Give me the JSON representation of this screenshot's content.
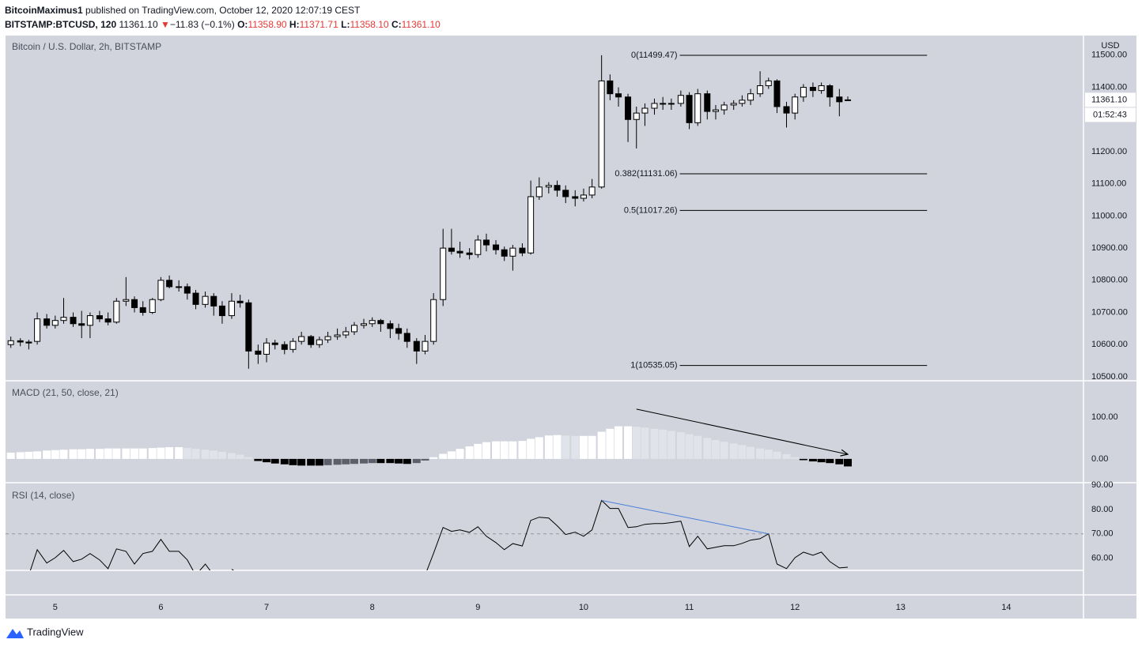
{
  "header": {
    "author": "BitcoinMaximus1",
    "published": "published on TradingView.com, October 12, 2020 12:07:19 CEST",
    "symbol": "BITSTAMP:BTCUSD, 120",
    "last": "11361.10",
    "arrow": "▼",
    "change": "−11.83 (−0.1%)",
    "ohlc": [
      {
        "label": "O:",
        "value": "11358.90"
      },
      {
        "label": "H:",
        "value": "11371.71"
      },
      {
        "label": "L:",
        "value": "11358.10"
      },
      {
        "label": "C:",
        "value": "11361.10"
      }
    ]
  },
  "chart_data": {
    "type": "candlestick",
    "title": "Bitcoin / U.S. Dollar, 2h, BITSTAMP",
    "y_axis_label": "USD",
    "up_color": "#ffffff",
    "down_color": "#000000",
    "border_color": "#000000",
    "xlim": [
      4.53,
      14.73
    ],
    "xticks": [
      5,
      6,
      7,
      8,
      9,
      10,
      11,
      12,
      13,
      14
    ],
    "ylim": [
      10490,
      11561
    ],
    "yticks": [
      {
        "value": 10500,
        "label": "10500.00"
      },
      {
        "value": 10600,
        "label": "10600.00"
      },
      {
        "value": 10700,
        "label": "10700.00"
      },
      {
        "value": 10800,
        "label": "10800.00"
      },
      {
        "value": 10900,
        "label": "10900.00"
      },
      {
        "value": 11000,
        "label": "11000.00"
      },
      {
        "value": 11100,
        "label": "11100.00"
      },
      {
        "value": 11200,
        "label": "11200.00"
      },
      {
        "value": 11300,
        "label": "11300.00"
      },
      {
        "value": 11400,
        "label": "11400.00"
      },
      {
        "value": 11500,
        "label": "11500.00"
      }
    ],
    "x": [
      4.58,
      4.67,
      4.75,
      4.83,
      4.92,
      5,
      5.08,
      5.17,
      5.25,
      5.33,
      5.42,
      5.5,
      5.58,
      5.67,
      5.75,
      5.83,
      5.92,
      6,
      6.08,
      6.17,
      6.25,
      6.33,
      6.42,
      6.5,
      6.58,
      6.67,
      6.75,
      6.83,
      6.92,
      7,
      7.08,
      7.17,
      7.25,
      7.33,
      7.42,
      7.5,
      7.58,
      7.67,
      7.75,
      7.83,
      7.92,
      8,
      8.08,
      8.17,
      8.25,
      8.33,
      8.42,
      8.5,
      8.58,
      8.67,
      8.75,
      8.83,
      8.92,
      9,
      9.08,
      9.17,
      9.25,
      9.33,
      9.42,
      9.5,
      9.58,
      9.67,
      9.75,
      9.83,
      9.92,
      10,
      10.08,
      10.17,
      10.25,
      10.33,
      10.42,
      10.5,
      10.58,
      10.67,
      10.75,
      10.83,
      10.92,
      11,
      11.08,
      11.17,
      11.25,
      11.33,
      11.42,
      11.5,
      11.58,
      11.67,
      11.75,
      11.83,
      11.92,
      12,
      12.08,
      12.17,
      12.25,
      12.33,
      12.42,
      12.5
    ],
    "candles": [
      [
        10600,
        10625,
        10590,
        10612
      ],
      [
        10612,
        10620,
        10595,
        10608
      ],
      [
        10608,
        10615,
        10585,
        10605
      ],
      [
        10610,
        10700,
        10600,
        10680
      ],
      [
        10680,
        10695,
        10650,
        10660
      ],
      [
        10660,
        10690,
        10650,
        10675
      ],
      [
        10675,
        10745,
        10665,
        10685
      ],
      [
        10685,
        10700,
        10655,
        10665
      ],
      [
        10665,
        10705,
        10620,
        10660
      ],
      [
        10660,
        10700,
        10620,
        10690
      ],
      [
        10690,
        10705,
        10670,
        10680
      ],
      [
        10680,
        10700,
        10660,
        10670
      ],
      [
        10670,
        10745,
        10665,
        10735
      ],
      [
        10735,
        10810,
        10720,
        10740
      ],
      [
        10740,
        10750,
        10700,
        10715
      ],
      [
        10715,
        10735,
        10690,
        10700
      ],
      [
        10700,
        10745,
        10695,
        10740
      ],
      [
        10740,
        10810,
        10735,
        10800
      ],
      [
        10800,
        10815,
        10775,
        10780
      ],
      [
        10780,
        10800,
        10765,
        10780
      ],
      [
        10780,
        10790,
        10740,
        10760
      ],
      [
        10760,
        10770,
        10710,
        10725
      ],
      [
        10725,
        10765,
        10715,
        10750
      ],
      [
        10750,
        10760,
        10690,
        10720
      ],
      [
        10720,
        10735,
        10665,
        10690
      ],
      [
        10690,
        10760,
        10680,
        10735
      ],
      [
        10735,
        10755,
        10715,
        10730
      ],
      [
        10730,
        10740,
        10525,
        10580
      ],
      [
        10580,
        10600,
        10540,
        10570
      ],
      [
        10570,
        10620,
        10545,
        10605
      ],
      [
        10605,
        10615,
        10585,
        10600
      ],
      [
        10600,
        10610,
        10570,
        10585
      ],
      [
        10585,
        10620,
        10575,
        10610
      ],
      [
        10610,
        10640,
        10600,
        10625
      ],
      [
        10625,
        10630,
        10590,
        10600
      ],
      [
        10600,
        10625,
        10590,
        10615
      ],
      [
        10615,
        10640,
        10605,
        10625
      ],
      [
        10625,
        10650,
        10615,
        10630
      ],
      [
        10630,
        10655,
        10620,
        10640
      ],
      [
        10640,
        10670,
        10630,
        10660
      ],
      [
        10660,
        10680,
        10650,
        10665
      ],
      [
        10665,
        10685,
        10655,
        10675
      ],
      [
        10675,
        10680,
        10640,
        10665
      ],
      [
        10665,
        10675,
        10620,
        10650
      ],
      [
        10650,
        10665,
        10615,
        10635
      ],
      [
        10635,
        10650,
        10590,
        10610
      ],
      [
        10610,
        10620,
        10540,
        10580
      ],
      [
        10580,
        10630,
        10570,
        10610
      ],
      [
        10610,
        10760,
        10600,
        10740
      ],
      [
        10740,
        10960,
        10720,
        10900
      ],
      [
        10900,
        10960,
        10880,
        10890
      ],
      [
        10890,
        10920,
        10870,
        10885
      ],
      [
        10885,
        10900,
        10865,
        10880
      ],
      [
        10880,
        10940,
        10870,
        10925
      ],
      [
        10925,
        10945,
        10890,
        10910
      ],
      [
        10910,
        10925,
        10880,
        10895
      ],
      [
        10895,
        10905,
        10860,
        10875
      ],
      [
        10875,
        10910,
        10830,
        10900
      ],
      [
        10900,
        10915,
        10875,
        10885
      ],
      [
        10885,
        11110,
        10880,
        11060
      ],
      [
        11060,
        11120,
        11050,
        11090
      ],
      [
        11090,
        11105,
        11070,
        11095
      ],
      [
        11095,
        11110,
        11060,
        11080
      ],
      [
        11080,
        11095,
        11040,
        11060
      ],
      [
        11060,
        11080,
        11030,
        11055
      ],
      [
        11055,
        11085,
        11045,
        11065
      ],
      [
        11065,
        11115,
        11055,
        11090
      ],
      [
        11090,
        11500,
        11085,
        11420
      ],
      [
        11420,
        11440,
        11360,
        11380
      ],
      [
        11380,
        11400,
        11340,
        11370
      ],
      [
        11370,
        11380,
        11230,
        11300
      ],
      [
        11300,
        11340,
        11210,
        11320
      ],
      [
        11320,
        11350,
        11280,
        11335
      ],
      [
        11335,
        11365,
        11315,
        11350
      ],
      [
        11350,
        11370,
        11330,
        11350
      ],
      [
        11350,
        11365,
        11330,
        11350
      ],
      [
        11350,
        11390,
        11340,
        11375
      ],
      [
        11375,
        11385,
        11270,
        11290
      ],
      [
        11290,
        11395,
        11280,
        11380
      ],
      [
        11380,
        11390,
        11300,
        11325
      ],
      [
        11325,
        11345,
        11300,
        11330
      ],
      [
        11330,
        11355,
        11315,
        11345
      ],
      [
        11345,
        11360,
        11330,
        11350
      ],
      [
        11350,
        11375,
        11340,
        11360
      ],
      [
        11360,
        11395,
        11345,
        11380
      ],
      [
        11380,
        11450,
        11370,
        11405
      ],
      [
        11405,
        11430,
        11395,
        11420
      ],
      [
        11420,
        11425,
        11320,
        11340
      ],
      [
        11340,
        11355,
        11275,
        11320
      ],
      [
        11320,
        11380,
        11300,
        11370
      ],
      [
        11370,
        11410,
        11355,
        11400
      ],
      [
        11400,
        11415,
        11370,
        11390
      ],
      [
        11390,
        11415,
        11380,
        11405
      ],
      [
        11405,
        11410,
        11340,
        11370
      ],
      [
        11370,
        11395,
        11310,
        11355
      ],
      [
        11358.9,
        11371.71,
        11358.1,
        11361.1
      ]
    ],
    "fib_levels": {
      "x_range": [
        10.91,
        13.25
      ],
      "levels": [
        {
          "value": 11499.47,
          "label": "0(11499.47)"
        },
        {
          "value": 11131.06,
          "label": "0.382(11131.06)"
        },
        {
          "value": 11017.26,
          "label": "0.5(11017.26)"
        },
        {
          "value": 10535.05,
          "label": "1(10535.05)"
        }
      ]
    },
    "last_price": {
      "value": 11361.1,
      "label": "11361.10"
    },
    "countdown": "01:52:43",
    "macd": {
      "type": "bar",
      "title": "MACD (21, 50, close, 21)",
      "ylim": [
        -55,
        185
      ],
      "yticks": [
        {
          "value": 0,
          "label": "0.00"
        },
        {
          "value": 100,
          "label": "100.00"
        }
      ],
      "colors": {
        "grow_above": "#ffffff",
        "fall_above": "#e1e3ea",
        "grow_below": "#5d606b",
        "fall_below": "#000000"
      },
      "values": [
        15,
        16,
        17,
        18,
        20,
        21,
        22,
        23,
        23,
        24,
        24,
        25,
        25,
        25,
        25,
        25,
        26,
        27,
        28,
        28,
        26,
        24,
        22,
        20,
        17,
        14,
        10,
        4,
        -5,
        -8,
        -11,
        -13,
        -15,
        -16,
        -16,
        -16,
        -15,
        -14,
        -13,
        -12,
        -11,
        -10,
        -10,
        -10,
        -11,
        -12,
        -10,
        -4,
        4,
        12,
        18,
        24,
        30,
        36,
        40,
        42,
        42,
        42,
        43,
        48,
        52,
        56,
        57,
        56,
        55,
        55,
        55,
        65,
        72,
        78,
        78,
        77,
        75,
        72,
        70,
        67,
        64,
        59,
        55,
        50,
        45,
        41,
        37,
        33,
        29,
        25,
        22,
        17,
        11,
        4,
        -3,
        -6,
        -8,
        -10,
        -13,
        -18
      ],
      "trend_line": {
        "x": [
          10.5,
          12.5
        ],
        "y": [
          119,
          11
        ],
        "color": "#000000"
      }
    },
    "rsi": {
      "type": "line",
      "title": "RSI (14, close)",
      "ylim": [
        55,
        90.65
      ],
      "yticks": [
        {
          "value": 60,
          "label": "60.00"
        },
        {
          "value": 70,
          "label": "70.00"
        },
        {
          "value": 80,
          "label": "80.00"
        },
        {
          "value": 90,
          "label": "90.00"
        }
      ],
      "color": "#000000",
      "band": 70,
      "values": [
        null,
        null,
        53,
        63.5,
        58,
        60.2,
        63.2,
        58.6,
        59.6,
        61.9,
        59.3,
        55.7,
        63.8,
        62.8,
        57.6,
        61.9,
        62.8,
        67.7,
        62.8,
        62.8,
        59.3,
        53,
        57.6,
        53,
        null,
        55.5,
        53,
        null,
        null,
        null,
        null,
        null,
        null,
        null,
        null,
        null,
        null,
        null,
        null,
        null,
        null,
        null,
        null,
        null,
        null,
        null,
        null,
        53,
        62,
        72.6,
        71,
        71.6,
        70.6,
        72.9,
        69,
        66.4,
        63.5,
        66,
        65,
        75.5,
        76.8,
        76.5,
        73.3,
        69.7,
        70.7,
        69,
        71.6,
        83.7,
        80.4,
        80.4,
        72.6,
        72.9,
        73.9,
        74.2,
        74.2,
        74.6,
        75.2,
        64.8,
        69,
        63.8,
        64.5,
        65.1,
        65.1,
        66.1,
        67.4,
        68,
        70,
        57.6,
        55.7,
        60.2,
        62.5,
        61.2,
        62.5,
        58.6,
        56,
        56.3
      ],
      "trend_line": {
        "x": [
          10.17,
          11.75
        ],
        "y": [
          83.7,
          70
        ],
        "color": "#4a7fd8"
      }
    }
  },
  "footer": {
    "logo": "TradingView"
  }
}
